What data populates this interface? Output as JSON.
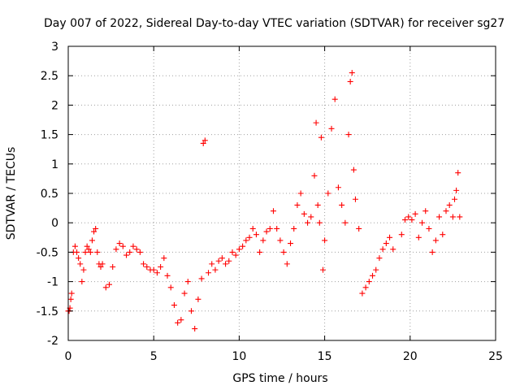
{
  "chart_data": {
    "type": "scatter",
    "title": "Day 007 of 2022, Sidereal Day-to-day VTEC variation (SDTVAR) for receiver sg27",
    "xlabel": "GPS time / hours",
    "ylabel": "SDTVAR / TECUs",
    "xlim": [
      0,
      25
    ],
    "ylim": [
      -2,
      3
    ],
    "xticks": [
      0,
      5,
      10,
      15,
      20,
      25
    ],
    "xtick_labels": [
      "0",
      "5",
      "10",
      "15",
      "20",
      "25"
    ],
    "yticks": [
      -2,
      -1.5,
      -1,
      -0.5,
      0,
      0.5,
      1,
      1.5,
      2,
      2.5,
      3
    ],
    "ytick_labels": [
      "-2",
      "-1.5",
      "-1",
      "-0.5",
      "0",
      "0.5",
      "1",
      "1.5",
      "2",
      "2.5",
      "3"
    ],
    "grid": true,
    "marker": "plus",
    "series": [
      {
        "name": "sg27",
        "color": "#ff0000",
        "x": [
          0.0,
          0.05,
          0.1,
          0.15,
          0.2,
          0.3,
          0.4,
          0.5,
          0.6,
          0.7,
          0.8,
          0.9,
          1.0,
          1.1,
          1.2,
          1.3,
          1.4,
          1.5,
          1.6,
          1.7,
          1.8,
          1.9,
          2.0,
          2.2,
          2.4,
          2.6,
          2.8,
          3.0,
          3.2,
          3.4,
          3.6,
          3.8,
          4.0,
          4.2,
          4.4,
          4.6,
          4.8,
          5.0,
          5.2,
          5.4,
          5.6,
          5.8,
          6.0,
          6.2,
          6.4,
          6.6,
          6.8,
          7.0,
          7.2,
          7.4,
          7.6,
          7.8,
          7.9,
          8.0,
          8.2,
          8.4,
          8.6,
          8.8,
          9.0,
          9.2,
          9.4,
          9.6,
          9.8,
          10.0,
          10.2,
          10.4,
          10.6,
          10.8,
          11.0,
          11.2,
          11.4,
          11.6,
          11.8,
          12.0,
          12.2,
          12.4,
          12.6,
          12.8,
          13.0,
          13.2,
          13.4,
          13.6,
          13.8,
          14.0,
          14.2,
          14.4,
          14.5,
          14.6,
          14.7,
          14.8,
          14.9,
          15.0,
          15.2,
          15.4,
          15.6,
          15.8,
          16.0,
          16.2,
          16.4,
          16.5,
          16.6,
          16.7,
          16.8,
          17.0,
          17.2,
          17.4,
          17.6,
          17.8,
          18.0,
          18.2,
          18.4,
          18.6,
          18.8,
          19.0,
          19.5,
          19.7,
          19.9,
          20.1,
          20.3,
          20.5,
          20.7,
          20.9,
          21.1,
          21.3,
          21.5,
          21.7,
          21.9,
          22.1,
          22.3,
          22.5,
          22.6,
          22.7,
          22.8,
          22.9
        ],
        "y": [
          -1.5,
          -1.5,
          -1.45,
          -1.3,
          -1.2,
          -0.5,
          -0.4,
          -0.5,
          -0.6,
          -0.7,
          -1.0,
          -0.8,
          -0.5,
          -0.4,
          -0.45,
          -0.5,
          -0.3,
          -0.15,
          -0.1,
          -0.5,
          -0.7,
          -0.75,
          -0.7,
          -1.1,
          -1.05,
          -0.75,
          -0.45,
          -0.35,
          -0.4,
          -0.55,
          -0.5,
          -0.4,
          -0.45,
          -0.5,
          -0.7,
          -0.75,
          -0.8,
          -0.8,
          -0.85,
          -0.75,
          -0.6,
          -0.9,
          -1.1,
          -1.4,
          -1.7,
          -1.65,
          -1.2,
          -1.0,
          -1.5,
          -1.8,
          -1.3,
          -0.95,
          1.35,
          1.4,
          -0.85,
          -0.7,
          -0.8,
          -0.65,
          -0.6,
          -0.7,
          -0.65,
          -0.5,
          -0.55,
          -0.45,
          -0.4,
          -0.3,
          -0.25,
          -0.1,
          -0.2,
          -0.5,
          -0.3,
          -0.15,
          -0.1,
          0.2,
          -0.1,
          -0.3,
          -0.5,
          -0.7,
          -0.35,
          -0.1,
          0.3,
          0.5,
          0.15,
          0.0,
          0.1,
          0.8,
          1.7,
          0.3,
          0.0,
          1.45,
          -0.8,
          -0.3,
          0.5,
          1.6,
          2.1,
          0.6,
          0.3,
          0.0,
          1.5,
          2.4,
          2.55,
          0.9,
          0.4,
          -0.1,
          -1.2,
          -1.1,
          -1.0,
          -0.9,
          -0.8,
          -0.6,
          -0.45,
          -0.35,
          -0.25,
          -0.45,
          -0.2,
          0.05,
          0.1,
          0.05,
          0.15,
          -0.25,
          0.0,
          0.2,
          -0.1,
          -0.5,
          -0.3,
          0.1,
          -0.2,
          0.2,
          0.3,
          0.1,
          0.4,
          0.55,
          0.85,
          0.1
        ]
      }
    ]
  }
}
